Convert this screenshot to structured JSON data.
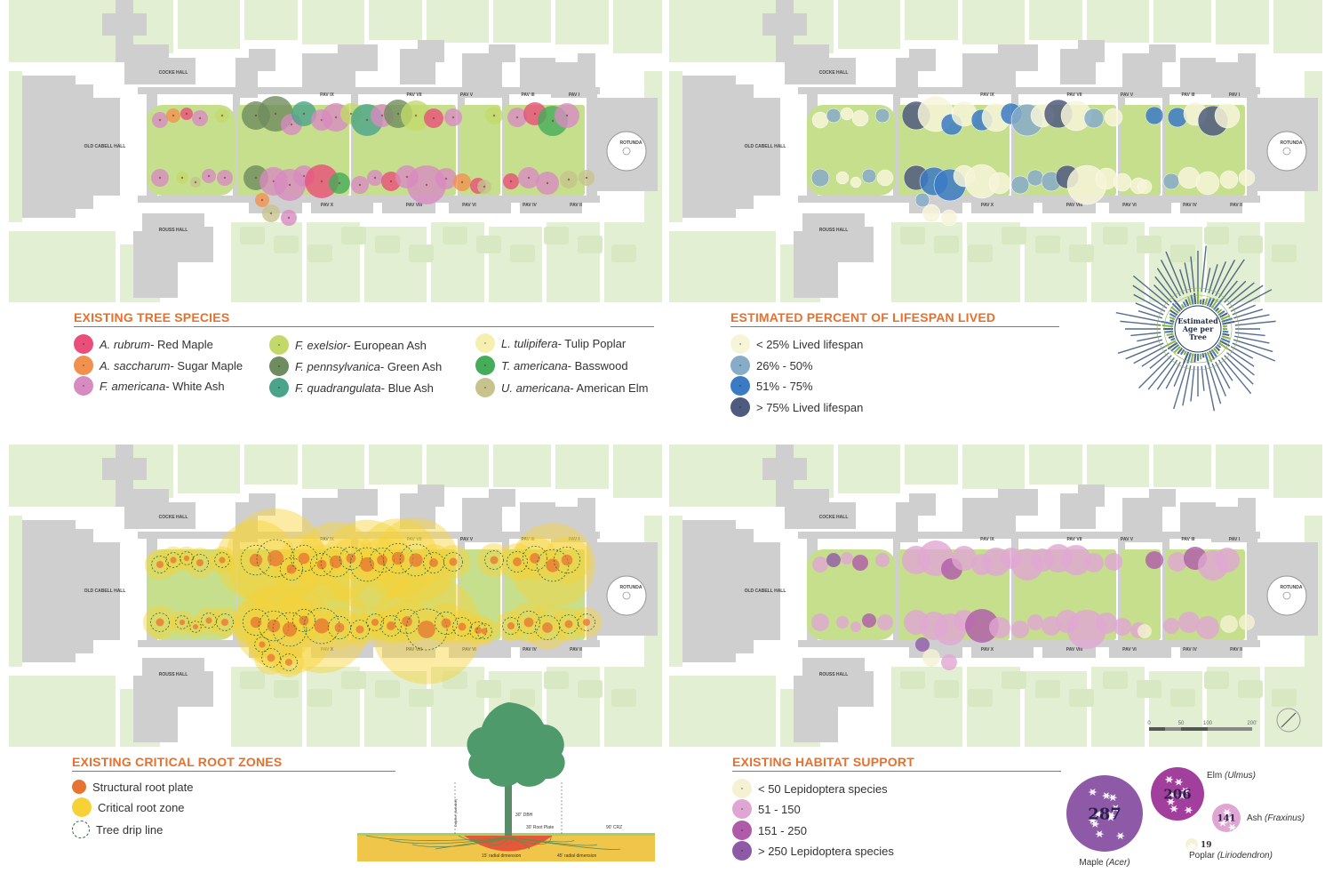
{
  "colors": {
    "heading": "#e8702a",
    "lawn": "#c6df8c",
    "building": "#cfcfcf",
    "street_grid": "#e3efd2",
    "red_maple": "#e94f7a",
    "sugar_maple": "#f0924e",
    "white_ash": "#d78bc0",
    "european_ash": "#c2d96a",
    "green_ash": "#6f8c5e",
    "blue_ash": "#4aa489",
    "tulip_poplar": "#f6f0b0",
    "basswood": "#45ad5a",
    "american_elm": "#c6c38c",
    "lifespan_low": "#f7f5d8",
    "lifespan_mid_low": "#86acc8",
    "lifespan_mid_high": "#3b7ac4",
    "lifespan_high": "#4f5b7e",
    "root_plate": "#e77331",
    "root_zone": "#f6d237",
    "habitat_low": "#f5f1d3",
    "habitat_mid_low": "#e0a6d3",
    "habitat_mid_high": "#b05aaa",
    "habitat_high": "#8e5aa8"
  },
  "map_labels": {
    "cocke_hall": "COCKE HALL",
    "old_cabell_hall": "OLD CABELL HALL",
    "rouss_hall": "ROUSS HALL",
    "rotunda": "ROTUNDA",
    "pav_top": [
      "PAV IX",
      "PAV VII",
      "PAV V",
      "PAV III",
      "PAV I"
    ],
    "pav_bottom": [
      "PAV X",
      "PAV VIII",
      "PAV VI",
      "PAV IV",
      "PAV II"
    ]
  },
  "species_legend": {
    "title": "EXISTING TREE SPECIES",
    "items": [
      {
        "sci": "A. rubrum",
        "common": " - Red Maple",
        "icon": "red-maple-swatch-icon",
        "color_key": "red_maple"
      },
      {
        "sci": "A. saccharum",
        "common": " - Sugar Maple",
        "icon": "sugar-maple-swatch-icon",
        "color_key": "sugar_maple"
      },
      {
        "sci": "F. americana",
        "common": " - White Ash",
        "icon": "white-ash-swatch-icon",
        "color_key": "white_ash"
      },
      {
        "sci": "F. exelsior",
        "common": " - European Ash",
        "icon": "european-ash-swatch-icon",
        "color_key": "european_ash"
      },
      {
        "sci": "F. pennsylvanica",
        "common": " - Green Ash",
        "icon": "green-ash-swatch-icon",
        "color_key": "green_ash"
      },
      {
        "sci": "F. quadrangulata",
        "common": " - Blue Ash",
        "icon": "blue-ash-swatch-icon",
        "color_key": "blue_ash"
      },
      {
        "sci": "L. tulipifera",
        "common": " - Tulip Poplar",
        "icon": "tulip-poplar-swatch-icon",
        "color_key": "tulip_poplar"
      },
      {
        "sci": "T. americana",
        "common": " - Basswood",
        "icon": "basswood-swatch-icon",
        "color_key": "basswood"
      },
      {
        "sci": "U. americana",
        "common": " - American Elm",
        "icon": "american-elm-swatch-icon",
        "color_key": "american_elm"
      }
    ]
  },
  "lifespan_legend": {
    "title": "ESTIMATED PERCENT OF LIFESPAN LIVED",
    "items": [
      "< 25% Lived lifespan",
      "26% - 50%",
      "51% - 75%",
      "> 75% Lived lifespan"
    ],
    "radial_title": "Estimated Age per Tree"
  },
  "root_legend": {
    "title": "EXISTING CRITICAL ROOT ZONES",
    "items": [
      "Structural root plate",
      "Critical root zone",
      "Tree drip line"
    ],
    "diagram_labels": {
      "dbh": "30\" DBH",
      "root_plate": "30' Root Plate",
      "crz": "90' CRZ",
      "lateral_15": "15' radial dimension",
      "lateral_45": "45' radial dimension",
      "dripline": "Dripline (variable)"
    }
  },
  "habitat_legend": {
    "title": "EXISTING HABITAT SUPPORT",
    "items": [
      "< 50 Lepidoptera species",
      "51 - 150",
      "151 - 250",
      "> 250 Lepidoptera species"
    ],
    "genera": [
      {
        "count": "287",
        "name": "Maple ",
        "genus": "(Acer)"
      },
      {
        "count": "206",
        "name": "Elm ",
        "genus": "(Ulmus)"
      },
      {
        "count": "141",
        "name": "Ash ",
        "genus": "(Fraxinus)"
      },
      {
        "count": "19",
        "name": "Poplar ",
        "genus": "(Liriodendron)"
      }
    ]
  },
  "scale_bar": {
    "ticks": [
      "0",
      "50",
      "100",
      "200'"
    ]
  }
}
